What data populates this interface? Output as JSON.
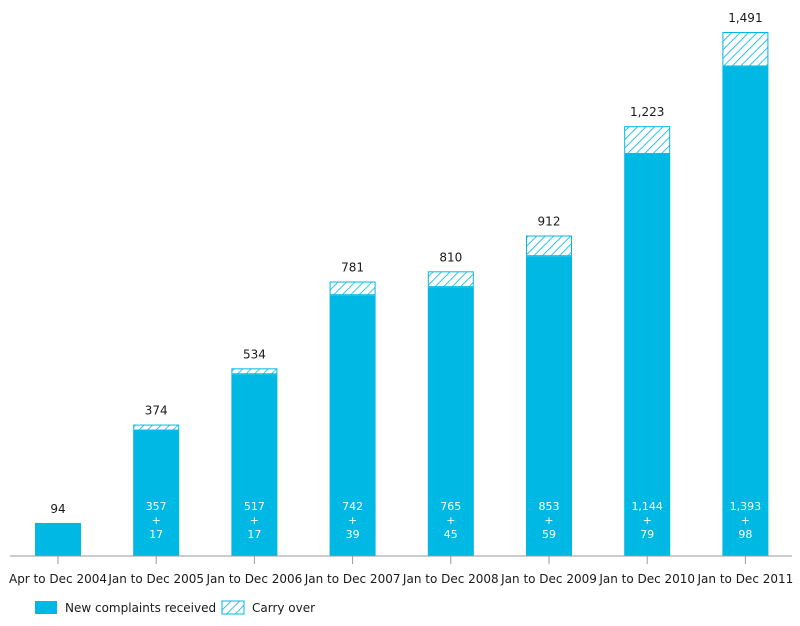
{
  "chart_data": {
    "type": "bar",
    "stacked": true,
    "categories": [
      "Apr to Dec 2004",
      "Jan to Dec 2005",
      "Jan to Dec 2006",
      "Jan to Dec 2007",
      "Jan to Dec 2008",
      "Jan to Dec 2009",
      "Jan to Dec 2010",
      "Jan to Dec 2011"
    ],
    "series": [
      {
        "name": "New complaints received",
        "values": [
          94,
          357,
          517,
          742,
          765,
          853,
          1144,
          1393
        ],
        "value_labels": [
          "",
          "357",
          "517",
          "742",
          "765",
          "853",
          "1,144",
          "1,393"
        ],
        "color": "#00b8e4"
      },
      {
        "name": "Carry over",
        "values": [
          0,
          17,
          17,
          39,
          45,
          59,
          79,
          98
        ],
        "value_labels": [
          "",
          "17",
          "17",
          "39",
          "45",
          "59",
          "79",
          "98"
        ],
        "color": "#00b8e4",
        "pattern": "diagonal-hatch"
      }
    ],
    "plus_sign": "+",
    "totals": [
      94,
      374,
      534,
      781,
      810,
      912,
      1223,
      1491
    ],
    "total_labels": [
      "94",
      "374",
      "534",
      "781",
      "810",
      "912",
      "1,223",
      "1,491"
    ],
    "ylim": [
      0,
      1491
    ],
    "grid": false,
    "legend": "bottom-left"
  }
}
